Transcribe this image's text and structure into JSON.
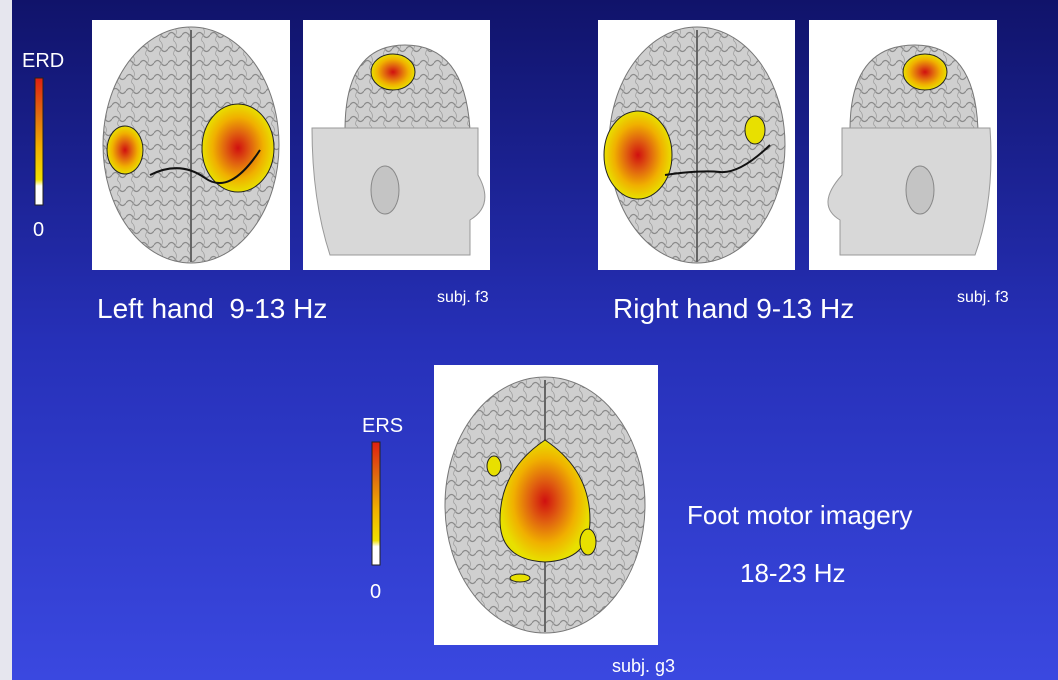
{
  "colorbars": [
    {
      "label": "ERD",
      "min": 0
    },
    {
      "label": "ERS",
      "min": 0
    }
  ],
  "panels": [
    {
      "caption": "Left hand  9-13 Hz",
      "subject": "subj. f3"
    },
    {
      "caption": "Right hand 9-13 Hz",
      "subject": "subj. f3"
    }
  ],
  "foot": {
    "caption_line1": "Foot motor imagery",
    "caption_line2": "18-23 Hz",
    "subject": "subj. g3"
  }
}
